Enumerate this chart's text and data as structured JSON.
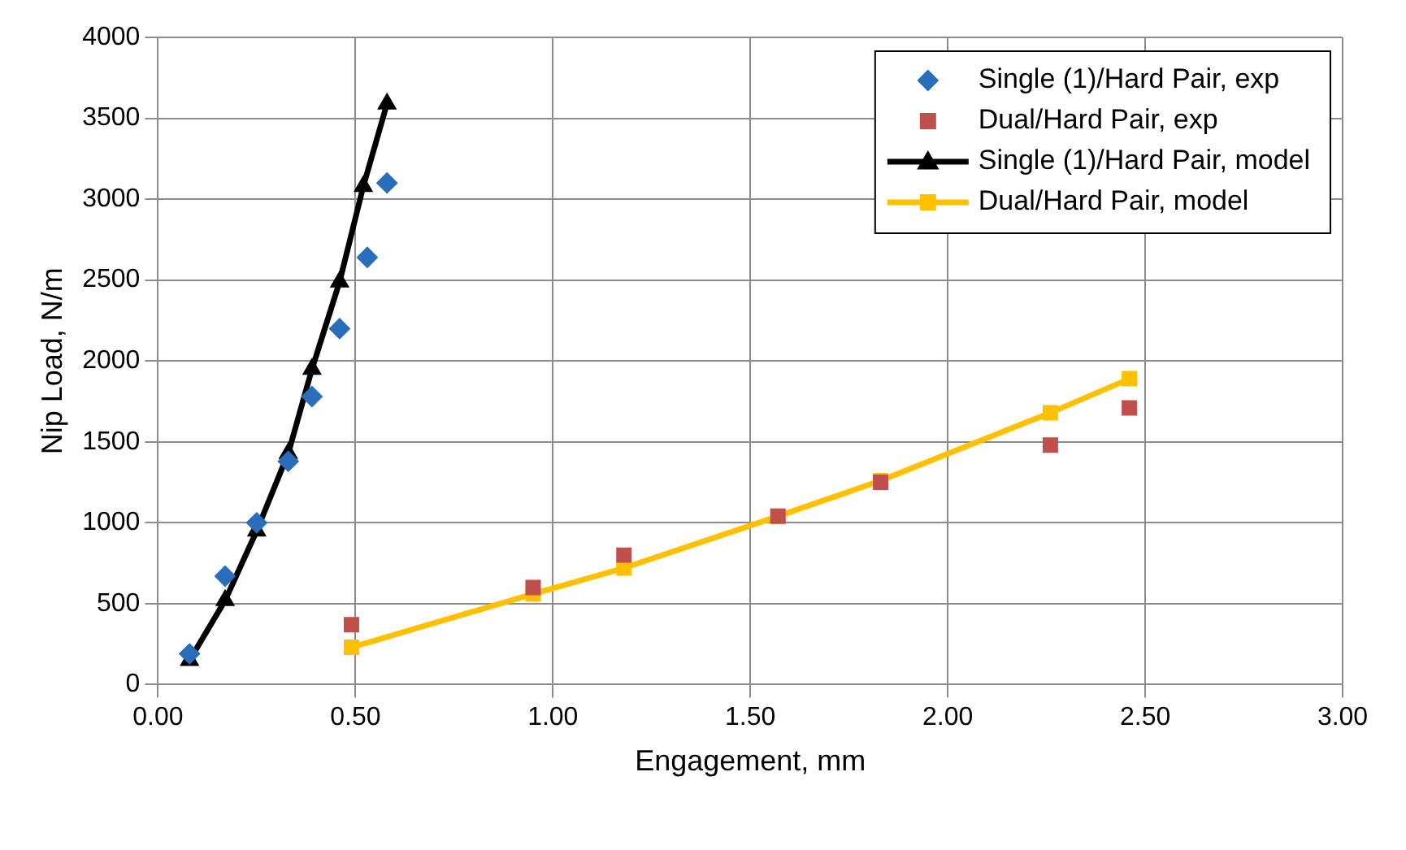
{
  "chart_data": {
    "type": "scatter",
    "xlabel": "Engagement, mm",
    "ylabel": "Nip Load, N/m",
    "xlim": [
      0,
      3
    ],
    "xticks": [
      {
        "value": 0,
        "label": "0.00"
      },
      {
        "value": 0.5,
        "label": "0.50"
      },
      {
        "value": 1,
        "label": "1.00"
      },
      {
        "value": 1.5,
        "label": "1.50"
      },
      {
        "value": 2,
        "label": "2.00"
      },
      {
        "value": 2.5,
        "label": "2.50"
      },
      {
        "value": 3,
        "label": "3.00"
      }
    ],
    "ylim": [
      0,
      4000
    ],
    "yticks": [
      0,
      500,
      1000,
      1500,
      2000,
      2500,
      3000,
      3500,
      4000
    ],
    "grid": true,
    "legend": "top right",
    "series": [
      {
        "name": "Single (1)/Hard Pair, exp",
        "type": "scatter",
        "marker": "diamond",
        "color": "#2a6ebb",
        "x": [
          0.08,
          0.17,
          0.25,
          0.33,
          0.39,
          0.46,
          0.53,
          0.58
        ],
        "values": [
          190,
          670,
          1000,
          1380,
          1780,
          2200,
          2640,
          3100
        ]
      },
      {
        "name": "Dual/Hard Pair, exp",
        "type": "scatter",
        "marker": "square",
        "color": "#c0504d",
        "x": [
          0.49,
          0.95,
          1.18,
          1.57,
          1.83,
          2.26,
          2.46
        ],
        "values": [
          370,
          600,
          800,
          1040,
          1250,
          1480,
          1710
        ]
      },
      {
        "name": "Single (1)/Hard Pair, model",
        "type": "line",
        "marker": "triangle",
        "color": "#000000",
        "x": [
          0.08,
          0.17,
          0.25,
          0.33,
          0.39,
          0.46,
          0.52,
          0.58
        ],
        "values": [
          150,
          520,
          950,
          1430,
          1950,
          2490,
          3080,
          3590
        ]
      },
      {
        "name": "Dual/Hard Pair, model",
        "type": "line",
        "marker": "square",
        "color": "#ffc000",
        "x": [
          0.49,
          0.95,
          1.18,
          1.57,
          1.83,
          2.26,
          2.46
        ],
        "values": [
          230,
          560,
          720,
          1040,
          1260,
          1680,
          1890
        ]
      }
    ]
  }
}
